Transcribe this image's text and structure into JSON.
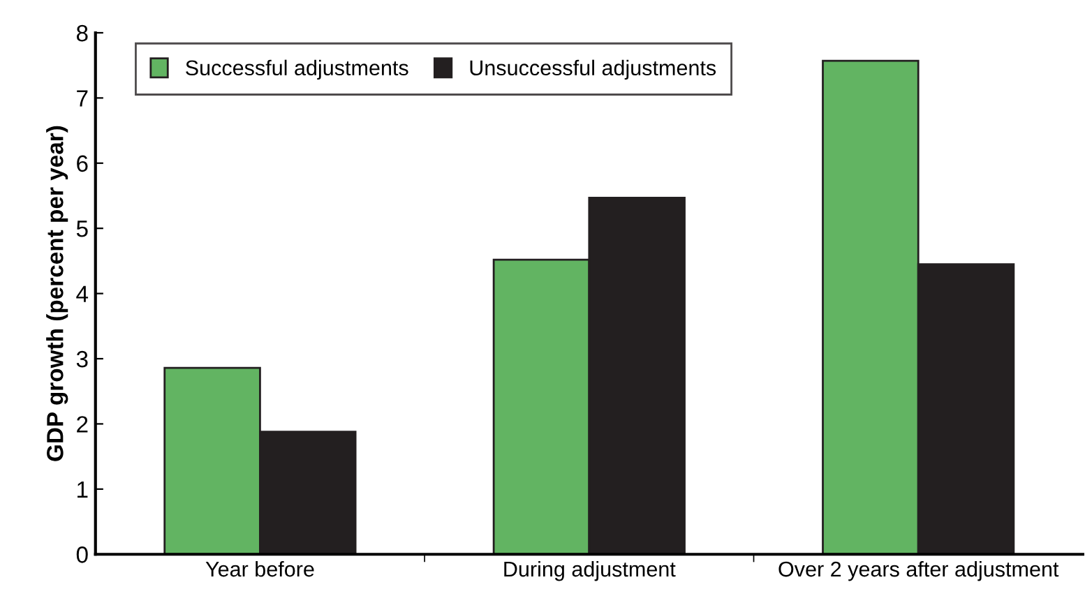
{
  "chart_data": {
    "type": "bar",
    "ylabel": "GDP growth (percent per year)",
    "categories": [
      "Year before",
      "During adjustment",
      "Over 2 years after adjustment"
    ],
    "series": [
      {
        "name": "Successful adjustments",
        "color": "#62b462",
        "values": [
          2.86,
          4.52,
          7.57
        ]
      },
      {
        "name": "Unsuccessful adjustments",
        "color": "#231f20",
        "values": [
          1.88,
          5.47,
          4.45
        ]
      }
    ],
    "ylim": [
      0,
      8
    ],
    "yticks": [
      0,
      1,
      2,
      3,
      4,
      5,
      6,
      7,
      8
    ],
    "grid": false,
    "legend": "top left"
  }
}
